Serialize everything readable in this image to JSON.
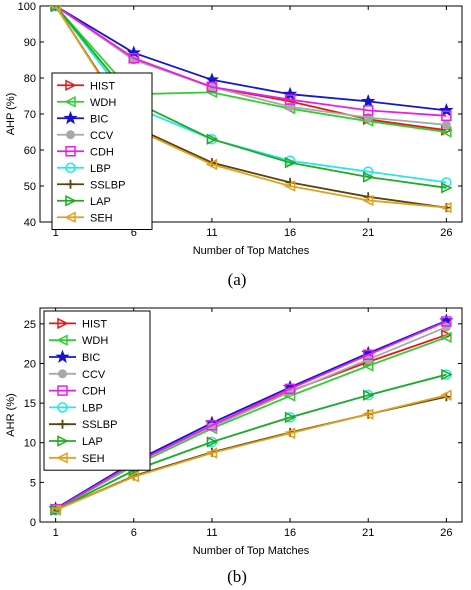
{
  "colors": {
    "HIST": "#e31a1c",
    "WDH": "#33cc33",
    "BIC": "#1414d2",
    "CCV": "#a8a8a8",
    "CDH": "#e81ee8",
    "LBP": "#22e8e8",
    "SSLBP": "#5a4310",
    "LAP": "#22aa22",
    "SEH": "#e0a020"
  },
  "chart_data": [
    {
      "caption": "(a)",
      "type": "line",
      "xlabel": "Number of Top Matches",
      "ylabel": "AHP (%)",
      "x": [
        1,
        6,
        11,
        16,
        21,
        26
      ],
      "xticks": [
        "1",
        "6",
        "11",
        "16",
        "21",
        "26"
      ],
      "ylim": [
        40,
        100
      ],
      "yticks": [
        "40",
        "50",
        "60",
        "70",
        "80",
        "90",
        "100"
      ],
      "grid": false,
      "legend_position": "left",
      "series": [
        {
          "name": "HIST",
          "marker": "tri-right",
          "values": [
            100,
            85.5,
            77.5,
            73.5,
            68.5,
            65.5
          ]
        },
        {
          "name": "WDH",
          "marker": "tri-left",
          "values": [
            100,
            75.5,
            76,
            71.5,
            68,
            65
          ]
        },
        {
          "name": "BIC",
          "marker": "star",
          "values": [
            100,
            87,
            79.5,
            75.5,
            73.5,
            71
          ]
        },
        {
          "name": "CCV",
          "marker": "circle",
          "values": [
            100,
            85,
            77.5,
            72,
            69,
            67
          ]
        },
        {
          "name": "CDH",
          "marker": "square",
          "values": [
            100,
            85.5,
            77.5,
            74,
            71,
            69.5
          ]
        },
        {
          "name": "LBP",
          "marker": "circle-open",
          "values": [
            100,
            72,
            63,
            57,
            54,
            51
          ]
        },
        {
          "name": "SSLBP",
          "marker": "plus",
          "values": [
            100,
            66.5,
            56.5,
            51,
            47,
            44
          ]
        },
        {
          "name": "LAP",
          "marker": "tri-right",
          "values": [
            100,
            73.5,
            63,
            56.5,
            52.5,
            49.5
          ]
        },
        {
          "name": "SEH",
          "marker": "tri-left",
          "values": [
            100,
            66,
            56,
            50,
            46,
            44
          ]
        }
      ]
    },
    {
      "caption": "(b)",
      "type": "line",
      "xlabel": "Number of Top Matches",
      "ylabel": "AHR (%)",
      "x": [
        1,
        6,
        11,
        16,
        21,
        26
      ],
      "xticks": [
        "1",
        "6",
        "11",
        "16",
        "21",
        "26"
      ],
      "ylim": [
        0,
        27
      ],
      "yticks": [
        "0",
        "5",
        "10",
        "15",
        "20",
        "25"
      ],
      "grid": false,
      "legend_position": "top-left",
      "series": [
        {
          "name": "HIST",
          "marker": "tri-right",
          "values": [
            1.6,
            7.3,
            12.1,
            16.5,
            20.2,
            23.6
          ]
        },
        {
          "name": "WDH",
          "marker": "tri-left",
          "values": [
            1.6,
            7.1,
            11.8,
            15.9,
            19.7,
            23.3
          ]
        },
        {
          "name": "BIC",
          "marker": "star",
          "values": [
            1.7,
            7.6,
            12.5,
            17.0,
            21.3,
            25.4
          ]
        },
        {
          "name": "CCV",
          "marker": "circle",
          "values": [
            1.6,
            7.3,
            12.0,
            16.4,
            20.5,
            24.6
          ]
        },
        {
          "name": "CDH",
          "marker": "square",
          "values": [
            1.6,
            7.4,
            12.2,
            16.8,
            21.1,
            25.3
          ]
        },
        {
          "name": "LBP",
          "marker": "circle-open",
          "values": [
            1.5,
            6.5,
            10.1,
            13.2,
            16.0,
            18.6
          ]
        },
        {
          "name": "SSLBP",
          "marker": "plus",
          "values": [
            1.5,
            5.8,
            8.8,
            11.3,
            13.6,
            15.8
          ]
        },
        {
          "name": "LAP",
          "marker": "tri-right",
          "values": [
            1.5,
            6.5,
            10.1,
            13.2,
            16.0,
            18.6
          ]
        },
        {
          "name": "SEH",
          "marker": "tri-left",
          "values": [
            1.5,
            5.7,
            8.7,
            11.2,
            13.6,
            16.0
          ]
        }
      ]
    }
  ]
}
